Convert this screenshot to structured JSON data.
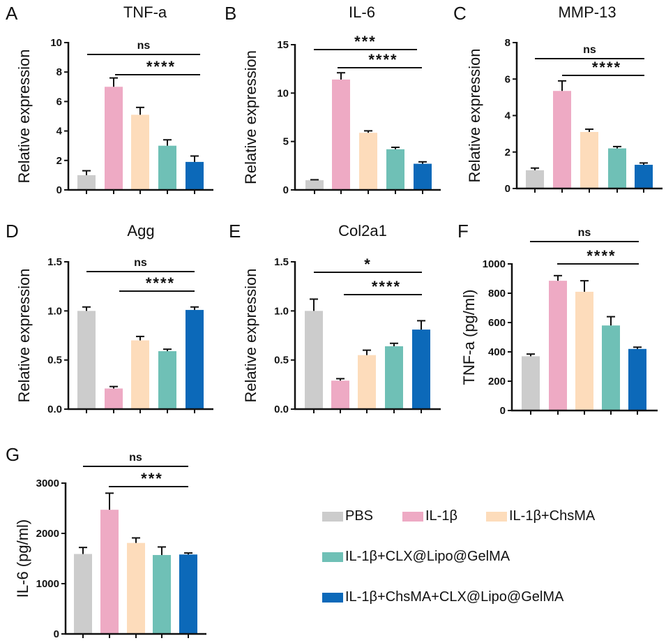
{
  "groups": [
    "PBS",
    "IL-1β",
    "IL-1β+ChsMA",
    "IL-1β+CLX@Lipo@GelMA",
    "IL-1β+ChsMA+CLX@Lipo@GelMA"
  ],
  "colors": [
    "#cccccc",
    "#eeaac4",
    "#fddcbb",
    "#6fc0b6",
    "#0c69b9"
  ],
  "legend": {
    "items": [
      {
        "label": "PBS",
        "color": "#cccccc"
      },
      {
        "label": "IL-1β",
        "color": "#eeaac4"
      },
      {
        "label": "IL-1β+ChsMA",
        "color": "#fddcbb"
      },
      {
        "label": "IL-1β+CLX@Lipo@GelMA",
        "color": "#6fc0b6"
      },
      {
        "label": "IL-1β+ChsMA+CLX@Lipo@GelMA",
        "color": "#0c69b9"
      }
    ]
  },
  "chart_data": [
    {
      "panel": "A",
      "type": "bar",
      "title": "TNF-a",
      "ylabel": "Relative expression",
      "xlabel": "",
      "categories": [
        "PBS",
        "IL-1β",
        "IL-1β+ChsMA",
        "IL-1β+CLX@Lipo@GelMA",
        "IL-1β+ChsMA+CLX@Lipo@GelMA"
      ],
      "values": [
        1.0,
        7.0,
        5.1,
        3.0,
        1.9
      ],
      "error_upper": [
        1.3,
        7.6,
        5.6,
        3.4,
        2.3
      ],
      "ylim": [
        0,
        10
      ],
      "yticks": [
        0,
        2,
        4,
        6,
        8,
        10
      ],
      "ytick_labels": [
        "0",
        "2",
        "4",
        "6",
        "8",
        "10"
      ],
      "significance": [
        {
          "label": "ns",
          "from": 0,
          "to": 4
        },
        {
          "label": "****",
          "from": 1,
          "to": 4
        }
      ]
    },
    {
      "panel": "B",
      "type": "bar",
      "title": "IL-6",
      "ylabel": "Relative expression",
      "xlabel": "",
      "categories": [
        "PBS",
        "IL-1β",
        "IL-1β+ChsMA",
        "IL-1β+CLX@Lipo@GelMA",
        "IL-1β+ChsMA+CLX@Lipo@GelMA"
      ],
      "values": [
        1.0,
        11.4,
        5.9,
        4.2,
        2.7
      ],
      "error_upper": [
        1.05,
        12.1,
        6.1,
        4.4,
        2.9
      ],
      "ylim": [
        0,
        15
      ],
      "yticks": [
        0,
        5,
        10,
        15
      ],
      "ytick_labels": [
        "0",
        "5",
        "10",
        "15"
      ],
      "significance": [
        {
          "label": "***",
          "from": 0,
          "to": 4
        },
        {
          "label": "****",
          "from": 1,
          "to": 4
        }
      ]
    },
    {
      "panel": "C",
      "type": "bar",
      "title": "MMP-13",
      "ylabel": "Relative expression",
      "xlabel": "",
      "categories": [
        "PBS",
        "IL-1β",
        "IL-1β+ChsMA",
        "IL-1β+CLX@Lipo@GelMA",
        "IL-1β+ChsMA+CLX@Lipo@GelMA"
      ],
      "values": [
        1.0,
        5.35,
        3.1,
        2.2,
        1.3
      ],
      "error_upper": [
        1.12,
        5.9,
        3.25,
        2.3,
        1.4
      ],
      "ylim": [
        0,
        8
      ],
      "yticks": [
        0,
        2,
        4,
        6,
        8
      ],
      "ytick_labels": [
        "0",
        "2",
        "4",
        "6",
        "8"
      ],
      "significance": [
        {
          "label": "ns",
          "from": 0,
          "to": 4
        },
        {
          "label": "****",
          "from": 1,
          "to": 4
        }
      ]
    },
    {
      "panel": "D",
      "type": "bar",
      "title": "Agg",
      "ylabel": "Relative expression",
      "xlabel": "",
      "categories": [
        "PBS",
        "IL-1β",
        "IL-1β+ChsMA",
        "IL-1β+CLX@Lipo@GelMA",
        "IL-1β+ChsMA+CLX@Lipo@GelMA"
      ],
      "values": [
        1.0,
        0.21,
        0.7,
        0.59,
        1.01
      ],
      "error_upper": [
        1.04,
        0.23,
        0.74,
        0.61,
        1.04
      ],
      "ylim": [
        0,
        1.5
      ],
      "yticks": [
        0,
        0.5,
        1.0,
        1.5
      ],
      "ytick_labels": [
        "0.0",
        "0.5",
        "1.0",
        "1.5"
      ],
      "significance": [
        {
          "label": "ns",
          "from": 0,
          "to": 4
        },
        {
          "label": "****",
          "from": 1,
          "to": 4
        }
      ]
    },
    {
      "panel": "E",
      "type": "bar",
      "title": "Col2a1",
      "ylabel": "Relative expression",
      "xlabel": "",
      "categories": [
        "PBS",
        "IL-1β",
        "IL-1β+ChsMA",
        "IL-1β+CLX@Lipo@GelMA",
        "IL-1β+ChsMA+CLX@Lipo@GelMA"
      ],
      "values": [
        1.0,
        0.29,
        0.55,
        0.64,
        0.81
      ],
      "error_upper": [
        1.12,
        0.31,
        0.6,
        0.67,
        0.9
      ],
      "ylim": [
        0,
        1.5
      ],
      "yticks": [
        0,
        0.5,
        1.0,
        1.5
      ],
      "ytick_labels": [
        "0.0",
        "0.5",
        "1.0",
        "1.5"
      ],
      "significance": [
        {
          "label": "*",
          "from": 0,
          "to": 4
        },
        {
          "label": "****",
          "from": 1,
          "to": 4
        }
      ]
    },
    {
      "panel": "F",
      "type": "bar",
      "title": "",
      "ylabel": "TNF-a (pg/ml)",
      "xlabel": "",
      "categories": [
        "PBS",
        "IL-1β",
        "IL-1β+ChsMA",
        "IL-1β+CLX@Lipo@GelMA",
        "IL-1β+ChsMA+CLX@Lipo@GelMA"
      ],
      "values": [
        370,
        885,
        810,
        580,
        420
      ],
      "error_upper": [
        385,
        920,
        885,
        640,
        432
      ],
      "ylim": [
        0,
        1000
      ],
      "yticks": [
        0,
        200,
        400,
        600,
        800,
        1000
      ],
      "ytick_labels": [
        "0",
        "200",
        "400",
        "600",
        "800",
        "1000"
      ],
      "significance": [
        {
          "label": "ns",
          "from": 0,
          "to": 4
        },
        {
          "label": "****",
          "from": 1,
          "to": 4
        }
      ]
    },
    {
      "panel": "G",
      "type": "bar",
      "title": "",
      "ylabel": "IL-6 (pg/ml)",
      "xlabel": "",
      "categories": [
        "PBS",
        "IL-1β",
        "IL-1β+ChsMA",
        "IL-1β+CLX@Lipo@GelMA",
        "IL-1β+ChsMA+CLX@Lipo@GelMA"
      ],
      "values": [
        1590,
        2470,
        1810,
        1570,
        1580
      ],
      "error_upper": [
        1720,
        2800,
        1910,
        1730,
        1610
      ],
      "ylim": [
        0,
        3000
      ],
      "yticks": [
        0,
        1000,
        2000,
        3000
      ],
      "ytick_labels": [
        "0",
        "1000",
        "2000",
        "3000"
      ],
      "significance": [
        {
          "label": "ns",
          "from": 0,
          "to": 4
        },
        {
          "label": "***",
          "from": 1,
          "to": 4
        }
      ]
    }
  ]
}
